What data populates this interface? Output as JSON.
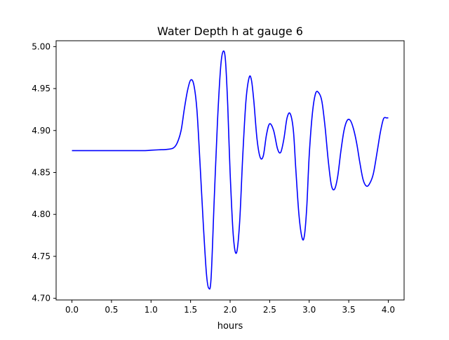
{
  "chart_data": {
    "type": "line",
    "title": "Water Depth h at gauge 6",
    "xlabel": "hours",
    "ylabel": "",
    "xlim": [
      -0.2,
      4.2
    ],
    "ylim": [
      4.698,
      5.007
    ],
    "x_ticks": [
      0.0,
      0.5,
      1.0,
      1.5,
      2.0,
      2.5,
      3.0,
      3.5,
      4.0
    ],
    "x_tick_labels": [
      "0.0",
      "0.5",
      "1.0",
      "1.5",
      "2.0",
      "2.5",
      "3.0",
      "3.5",
      "4.0"
    ],
    "y_ticks": [
      4.7,
      4.75,
      4.8,
      4.85,
      4.9,
      4.95,
      5.0
    ],
    "y_tick_labels": [
      "4.70",
      "4.75",
      "4.80",
      "4.85",
      "4.90",
      "4.95",
      "5.00"
    ],
    "grid": false,
    "legend": "none",
    "series": [
      {
        "color": "#0000ff",
        "x": [
          0.0,
          0.5,
          0.9,
          1.0,
          1.1,
          1.2,
          1.28,
          1.33,
          1.38,
          1.42,
          1.46,
          1.5,
          1.54,
          1.58,
          1.62,
          1.66,
          1.7,
          1.73,
          1.76,
          1.8,
          1.84,
          1.88,
          1.91,
          1.94,
          1.97,
          2.0,
          2.04,
          2.08,
          2.12,
          2.16,
          2.2,
          2.24,
          2.27,
          2.3,
          2.34,
          2.38,
          2.42,
          2.46,
          2.5,
          2.55,
          2.6,
          2.64,
          2.68,
          2.72,
          2.76,
          2.8,
          2.83,
          2.87,
          2.91,
          2.94,
          2.97,
          3.0,
          3.04,
          3.08,
          3.12,
          3.16,
          3.2,
          3.24,
          3.28,
          3.32,
          3.36,
          3.4,
          3.44,
          3.48,
          3.52,
          3.56,
          3.6,
          3.64,
          3.68,
          3.72,
          3.76,
          3.81,
          3.86,
          3.9,
          3.94,
          3.98,
          4.0
        ],
        "y": [
          4.876,
          4.876,
          4.876,
          4.8765,
          4.877,
          4.8775,
          4.879,
          4.885,
          4.9,
          4.925,
          4.947,
          4.96,
          4.955,
          4.925,
          4.86,
          4.79,
          4.73,
          4.712,
          4.725,
          4.82,
          4.91,
          4.975,
          4.994,
          4.985,
          4.93,
          4.85,
          4.775,
          4.754,
          4.79,
          4.87,
          4.935,
          4.963,
          4.96,
          4.935,
          4.89,
          4.868,
          4.87,
          4.895,
          4.908,
          4.9,
          4.878,
          4.874,
          4.89,
          4.915,
          4.92,
          4.9,
          4.855,
          4.8,
          4.772,
          4.775,
          4.81,
          4.87,
          4.92,
          4.944,
          4.945,
          4.935,
          4.905,
          4.865,
          4.835,
          4.83,
          4.845,
          4.875,
          4.9,
          4.912,
          4.912,
          4.902,
          4.885,
          4.862,
          4.842,
          4.834,
          4.836,
          4.848,
          4.875,
          4.898,
          4.914,
          4.915,
          4.915
        ]
      }
    ]
  }
}
